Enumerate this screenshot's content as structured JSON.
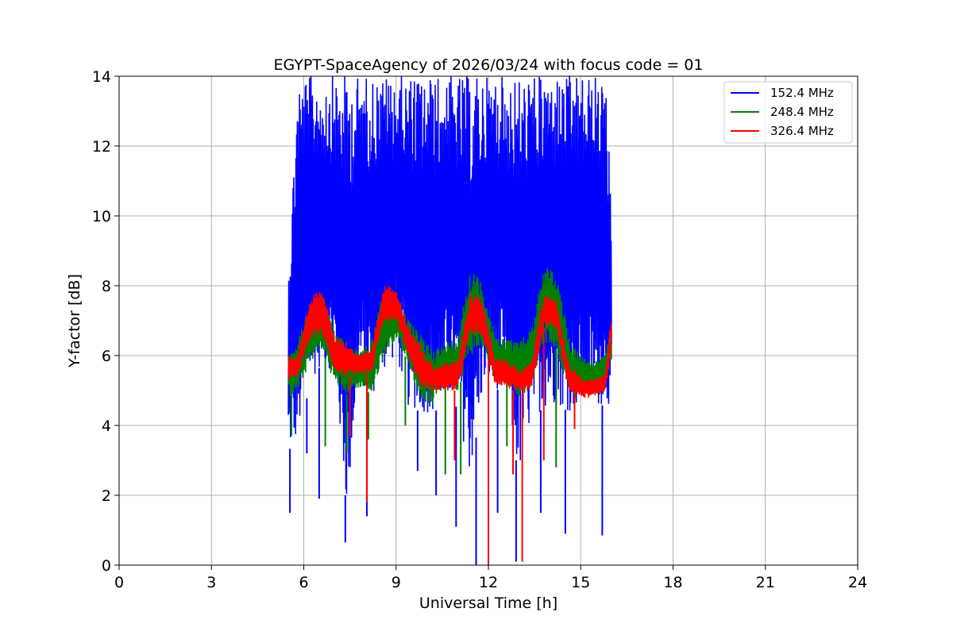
{
  "chart_data": {
    "type": "line",
    "title": "EGYPT-SpaceAgency of 2026/03/24 with focus code = 01",
    "xlabel": "Universal Time [h]",
    "ylabel": "Y-factor [dB]",
    "xlim": [
      0,
      24
    ],
    "ylim": [
      0,
      14
    ],
    "xticks": [
      0,
      3,
      6,
      9,
      12,
      15,
      18,
      21,
      24
    ],
    "yticks": [
      0,
      2,
      4,
      6,
      8,
      10,
      12,
      14
    ],
    "grid": true,
    "legend_position": "top-right",
    "series": [
      {
        "name": "152.4 MHz",
        "color": "#0000ff",
        "x": [
          5.5,
          5.8,
          6.2,
          6.6,
          7.0,
          7.4,
          7.8,
          8.2,
          8.6,
          9.0,
          9.4,
          9.8,
          10.2,
          10.6,
          11.0,
          11.4,
          11.8,
          12.2,
          12.6,
          13.0,
          13.4,
          13.8,
          14.2,
          14.6,
          15.0,
          15.4,
          15.8,
          16.0
        ],
        "lower": [
          3.3,
          3.5,
          5.2,
          5.8,
          5.5,
          1.5,
          5.2,
          4.8,
          5.5,
          6.0,
          4.5,
          4.4,
          4.3,
          4.8,
          4.5,
          2.5,
          4.8,
          5.2,
          4.5,
          2.5,
          4.2,
          4.5,
          4.6,
          4.4,
          4.5,
          4.5,
          4.6,
          4.6
        ],
        "upper": [
          8.4,
          14.0,
          14.0,
          14.0,
          14.0,
          14.0,
          14.0,
          14.0,
          14.0,
          14.0,
          14.0,
          14.0,
          14.0,
          14.0,
          14.0,
          14.0,
          14.0,
          14.0,
          14.0,
          14.0,
          14.0,
          14.0,
          14.0,
          14.0,
          14.0,
          14.0,
          14.0,
          10.5
        ],
        "dips": [
          [
            5.55,
            1.5
          ],
          [
            6.1,
            3.2
          ],
          [
            6.5,
            1.9
          ],
          [
            7.35,
            0.65
          ],
          [
            8.05,
            1.4
          ],
          [
            9.7,
            2.7
          ],
          [
            10.3,
            2.0
          ],
          [
            10.95,
            1.1
          ],
          [
            11.6,
            0.0
          ],
          [
            12.3,
            1.5
          ],
          [
            12.9,
            0.1
          ],
          [
            13.7,
            1.5
          ],
          [
            14.5,
            0.9
          ],
          [
            15.7,
            0.85
          ]
        ]
      },
      {
        "name": "248.4 MHz",
        "color": "#008000",
        "x": [
          5.5,
          5.8,
          6.2,
          6.6,
          7.0,
          7.4,
          7.8,
          8.2,
          8.6,
          9.0,
          9.4,
          9.8,
          10.2,
          10.6,
          11.0,
          11.4,
          11.8,
          12.2,
          12.6,
          13.0,
          13.4,
          13.8,
          14.2,
          14.6,
          15.0,
          15.4,
          15.8,
          16.0
        ],
        "lower": [
          4.8,
          5.0,
          5.8,
          6.2,
          5.2,
          4.9,
          5.1,
          4.9,
          6.0,
          6.5,
          5.8,
          4.7,
          4.6,
          5.3,
          5.0,
          6.0,
          6.2,
          5.3,
          5.3,
          4.8,
          5.1,
          6.4,
          6.2,
          5.0,
          5.0,
          5.0,
          5.3,
          5.8
        ],
        "upper": [
          6.2,
          6.4,
          7.5,
          7.8,
          6.7,
          6.3,
          6.2,
          6.4,
          7.9,
          7.8,
          7.0,
          6.6,
          6.2,
          6.3,
          6.6,
          8.5,
          8.1,
          6.6,
          6.5,
          6.4,
          6.8,
          8.6,
          8.4,
          6.6,
          6.0,
          5.8,
          6.0,
          7.0
        ],
        "dips": [
          [
            5.6,
            3.7
          ],
          [
            6.7,
            3.4
          ],
          [
            7.4,
            3.2
          ],
          [
            8.1,
            3.6
          ],
          [
            9.3,
            4.0
          ],
          [
            10.6,
            2.6
          ],
          [
            11.1,
            2.6
          ],
          [
            12.6,
            3.4
          ],
          [
            14.2,
            2.8
          ],
          [
            14.8,
            4.4
          ]
        ]
      },
      {
        "name": "326.4 MHz",
        "color": "#ff0000",
        "x": [
          5.5,
          5.8,
          6.2,
          6.6,
          7.0,
          7.4,
          7.8,
          8.2,
          8.6,
          9.0,
          9.4,
          9.8,
          10.2,
          10.6,
          11.0,
          11.4,
          11.8,
          12.2,
          12.6,
          13.0,
          13.4,
          13.8,
          14.2,
          14.6,
          15.0,
          15.4,
          15.8,
          16.0
        ],
        "lower": [
          5.3,
          5.4,
          6.5,
          6.6,
          5.6,
          5.4,
          5.5,
          5.5,
          7.0,
          7.0,
          6.0,
          5.1,
          5.0,
          5.0,
          5.0,
          6.6,
          6.6,
          5.2,
          5.1,
          4.9,
          5.0,
          6.8,
          6.8,
          5.0,
          4.8,
          4.8,
          5.0,
          6.2
        ],
        "upper": [
          6.0,
          6.0,
          7.7,
          7.9,
          6.6,
          6.4,
          6.0,
          6.2,
          8.0,
          8.0,
          6.8,
          6.3,
          5.7,
          5.8,
          5.8,
          7.8,
          7.6,
          6.0,
          5.9,
          5.6,
          5.8,
          7.8,
          7.6,
          5.8,
          5.4,
          5.3,
          5.5,
          7.3
        ],
        "dips": [
          [
            7.5,
            3.7
          ],
          [
            8.05,
            1.8
          ],
          [
            10.9,
            3.0
          ],
          [
            12.0,
            0.0
          ],
          [
            12.8,
            2.6
          ],
          [
            13.1,
            0.1
          ],
          [
            13.8,
            3.0
          ],
          [
            14.8,
            3.9
          ]
        ]
      }
    ]
  }
}
